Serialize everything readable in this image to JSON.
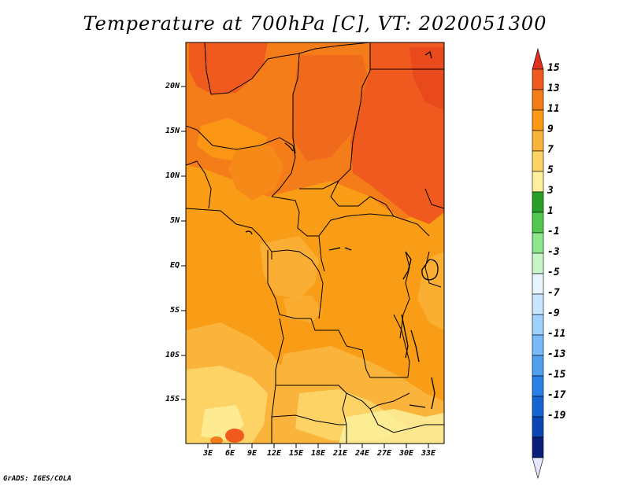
{
  "title": "Temperature at 700hPa [C], VT: 2020051300",
  "credit": "GrADS: IGES/COLA",
  "map": {
    "lat_labels": [
      "20N",
      "15N",
      "10N",
      "5N",
      "EQ",
      "5S",
      "10S",
      "15S"
    ],
    "lon_labels": [
      "3E",
      "6E",
      "9E",
      "12E",
      "15E",
      "18E",
      "21E",
      "24E",
      "27E",
      "30E",
      "33E"
    ]
  },
  "colorbar": {
    "labels": [
      "15",
      "13",
      "11",
      "9",
      "7",
      "5",
      "3",
      "1",
      "-1",
      "-3",
      "-5",
      "-7",
      "-9",
      "-11",
      "-13",
      "-15",
      "-17",
      "-19"
    ],
    "colors": [
      "#e0301e",
      "#f05a1e",
      "#f57d19",
      "#fa9a14",
      "#fab43c",
      "#fcd364",
      "#fcf09c",
      "#28a028",
      "#50c850",
      "#8ce68c",
      "#c8f5c8",
      "#e6f5ff",
      "#c8e6ff",
      "#a0d2ff",
      "#78b9fa",
      "#50a0f0",
      "#2882e6",
      "#1464d2",
      "#0a46b4",
      "#0a1e78",
      "#e6e6ff"
    ]
  }
}
